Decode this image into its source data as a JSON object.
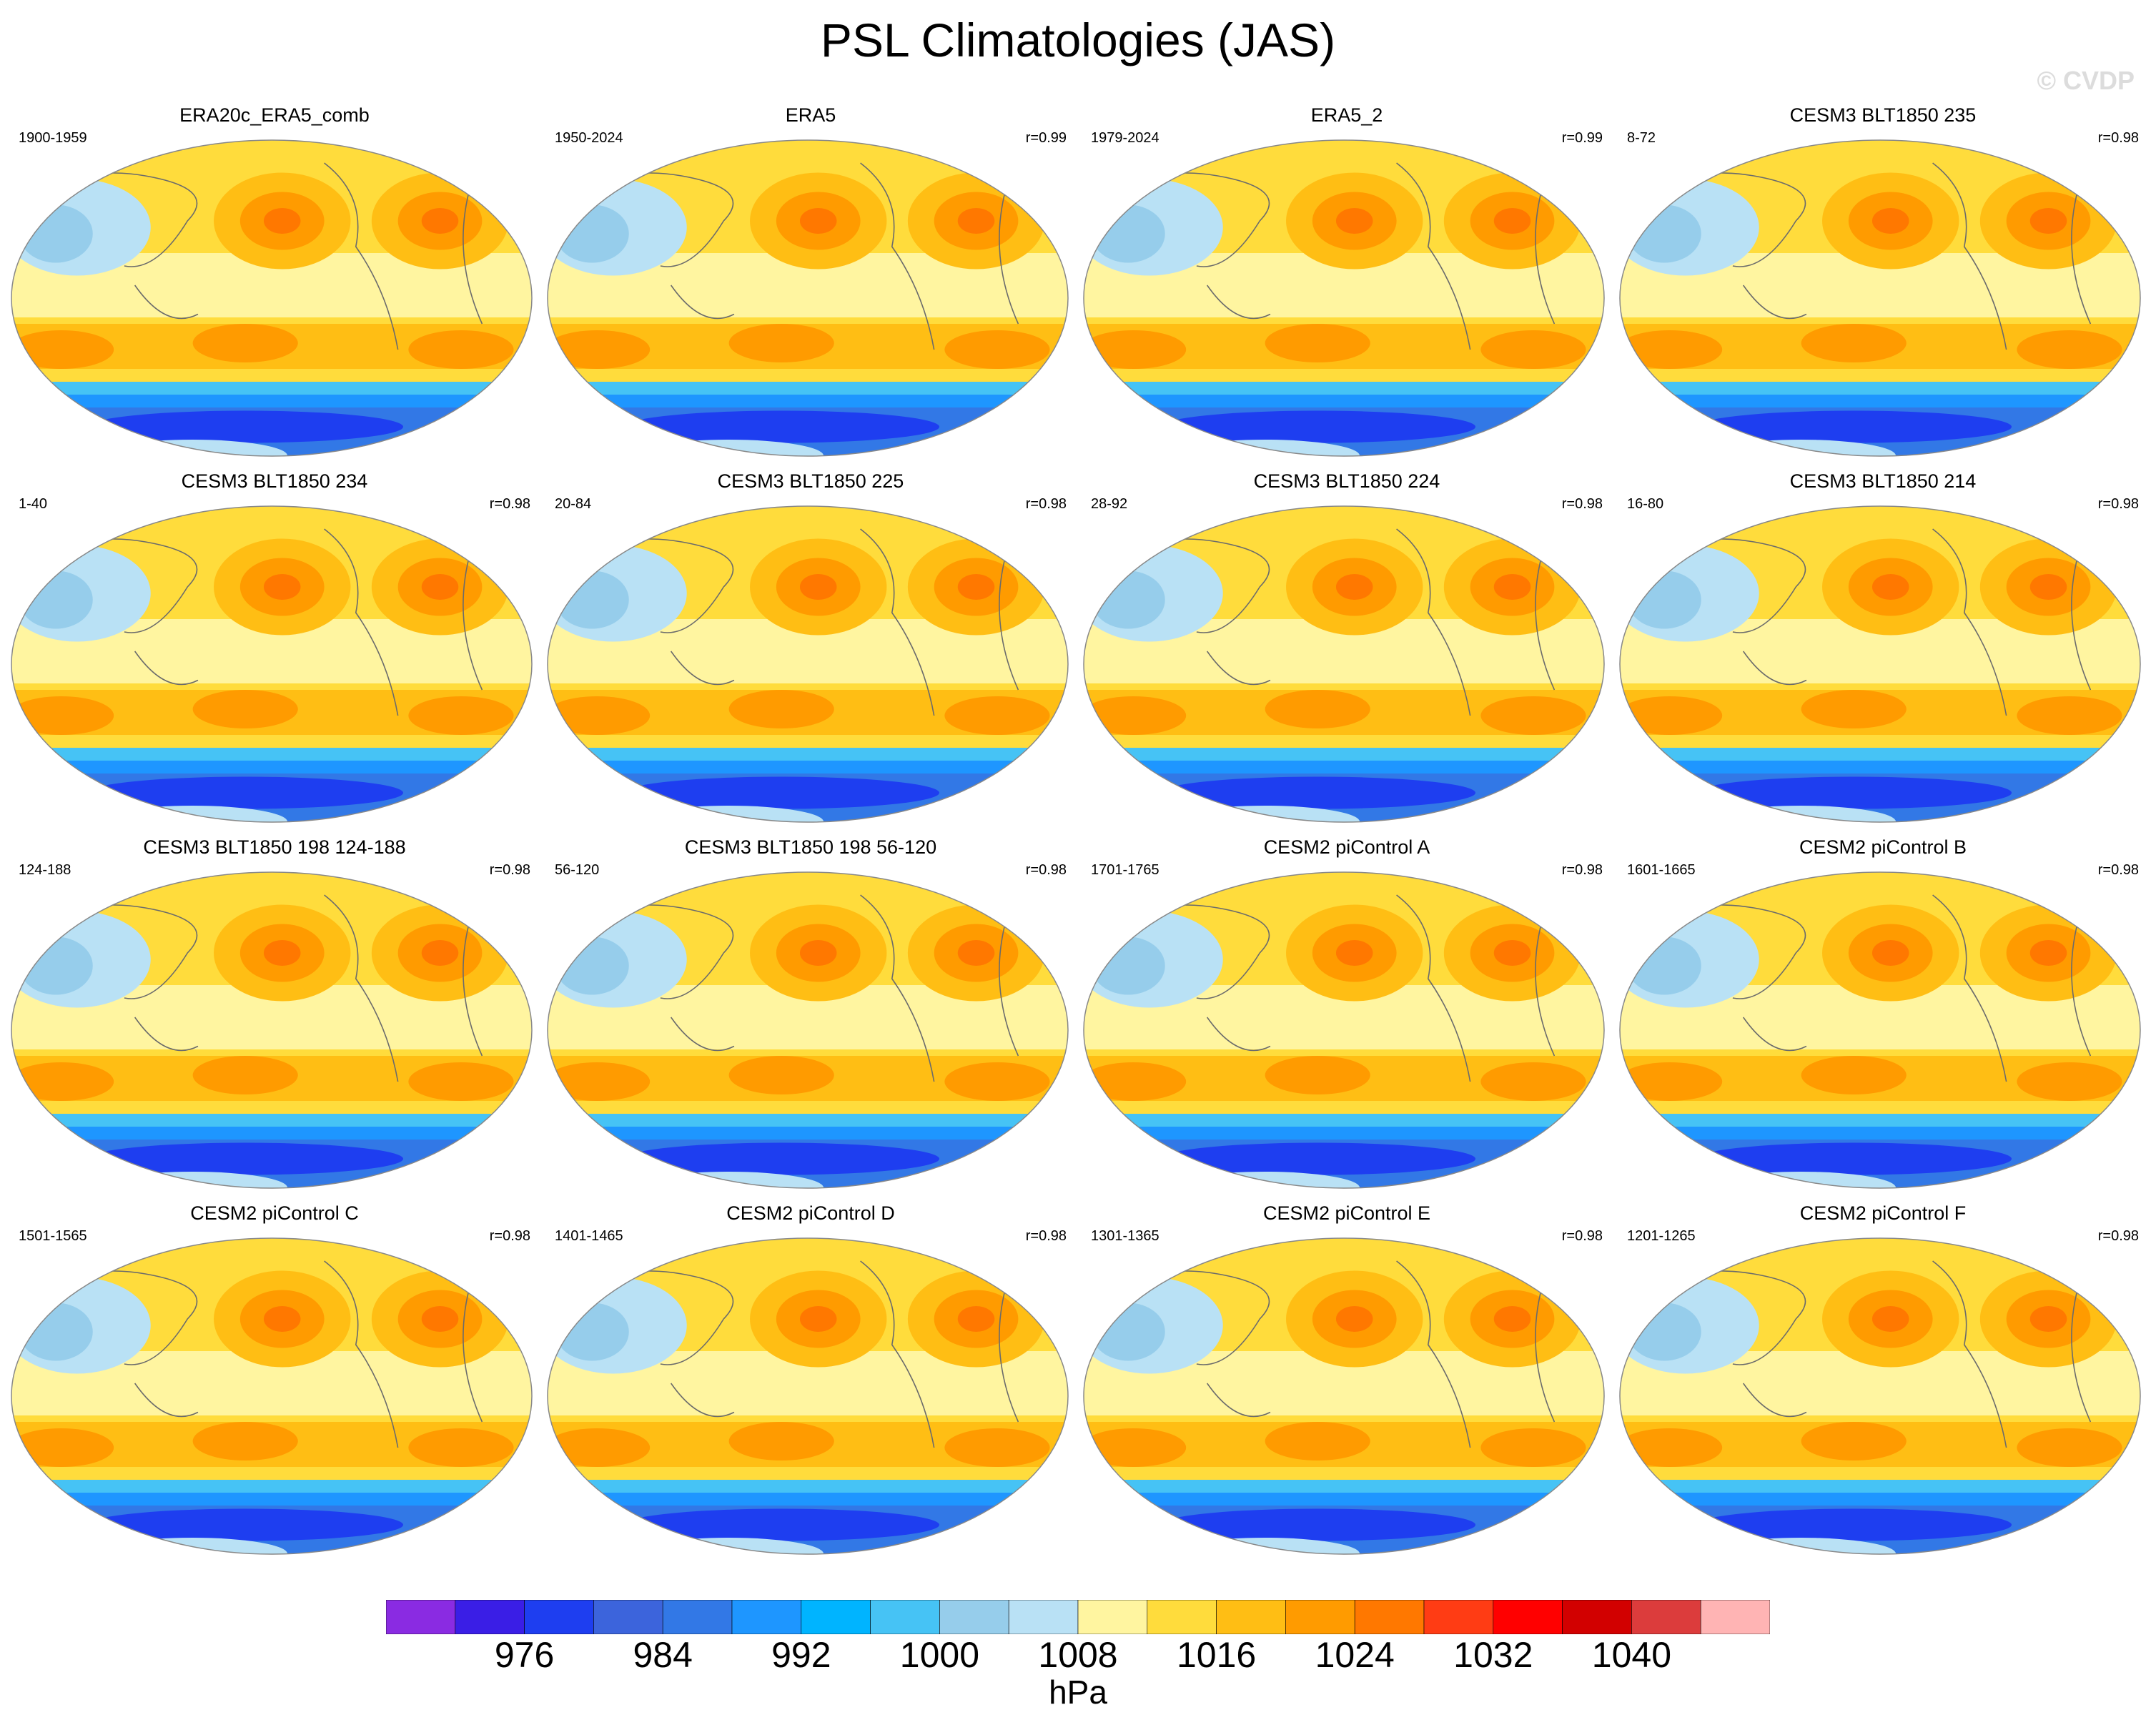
{
  "title": "PSL Climatologies (JAS)",
  "watermark": "© CVDP",
  "panels": [
    {
      "title": "ERA20c_ERA5_comb",
      "years": "1900-1959",
      "r": ""
    },
    {
      "title": "ERA5",
      "years": "1950-2024",
      "r": "r=0.99"
    },
    {
      "title": "ERA5_2",
      "years": "1979-2024",
      "r": "r=0.99"
    },
    {
      "title": "CESM3 BLT1850 235",
      "years": "8-72",
      "r": "r=0.98"
    },
    {
      "title": "CESM3 BLT1850 234",
      "years": "1-40",
      "r": "r=0.98"
    },
    {
      "title": "CESM3 BLT1850 225",
      "years": "20-84",
      "r": "r=0.98"
    },
    {
      "title": "CESM3 BLT1850 224",
      "years": "28-92",
      "r": "r=0.98"
    },
    {
      "title": "CESM3 BLT1850 214",
      "years": "16-80",
      "r": "r=0.98"
    },
    {
      "title": "CESM3 BLT1850 198 124-188",
      "years": "124-188",
      "r": "r=0.98"
    },
    {
      "title": "CESM3 BLT1850 198 56-120",
      "years": "56-120",
      "r": "r=0.98"
    },
    {
      "title": "CESM2 piControl A",
      "years": "1701-1765",
      "r": "r=0.98"
    },
    {
      "title": "CESM2 piControl B",
      "years": "1601-1665",
      "r": "r=0.98"
    },
    {
      "title": "CESM2 piControl C",
      "years": "1501-1565",
      "r": "r=0.98"
    },
    {
      "title": "CESM2 piControl D",
      "years": "1401-1465",
      "r": "r=0.98"
    },
    {
      "title": "CESM2 piControl E",
      "years": "1301-1365",
      "r": "r=0.98"
    },
    {
      "title": "CESM2 piControl F",
      "years": "1201-1265",
      "r": "r=0.98"
    }
  ],
  "colorbar": {
    "units": "hPa",
    "tick_labels": [
      "976",
      "984",
      "992",
      "1000",
      "1008",
      "1016",
      "1024",
      "1032",
      "1040"
    ],
    "colors": [
      "#8a2be2",
      "#3a1ee6",
      "#1e3ef0",
      "#3c64dc",
      "#3278e6",
      "#1e96ff",
      "#00b4ff",
      "#46c3f5",
      "#96cdeb",
      "#b9e1f5",
      "#fff5a0",
      "#ffdc3c",
      "#ffbe14",
      "#ff9b00",
      "#ff7800",
      "#ff3c14",
      "#ff0000",
      "#d20000",
      "#dc3c3c",
      "#ffb4b4"
    ]
  },
  "map_colors": {
    "ocean_base": "#ffdc3c",
    "subtropical_high_outer": "#ffbe14",
    "subtropical_high_inner": "#ff9b00",
    "subtropical_high_core": "#ff7800",
    "tropical_band": "#fff5a0",
    "asian_low": "#b9e1f5",
    "asian_low_core": "#96cdeb",
    "southern_ocean_outer": "#46c3f5",
    "southern_ocean_mid": "#1e96ff",
    "southern_ocean_inner": "#3278e6",
    "southern_ocean_core": "#1e3ef0",
    "coastline": "#6b6b6b",
    "border": "#888888"
  }
}
